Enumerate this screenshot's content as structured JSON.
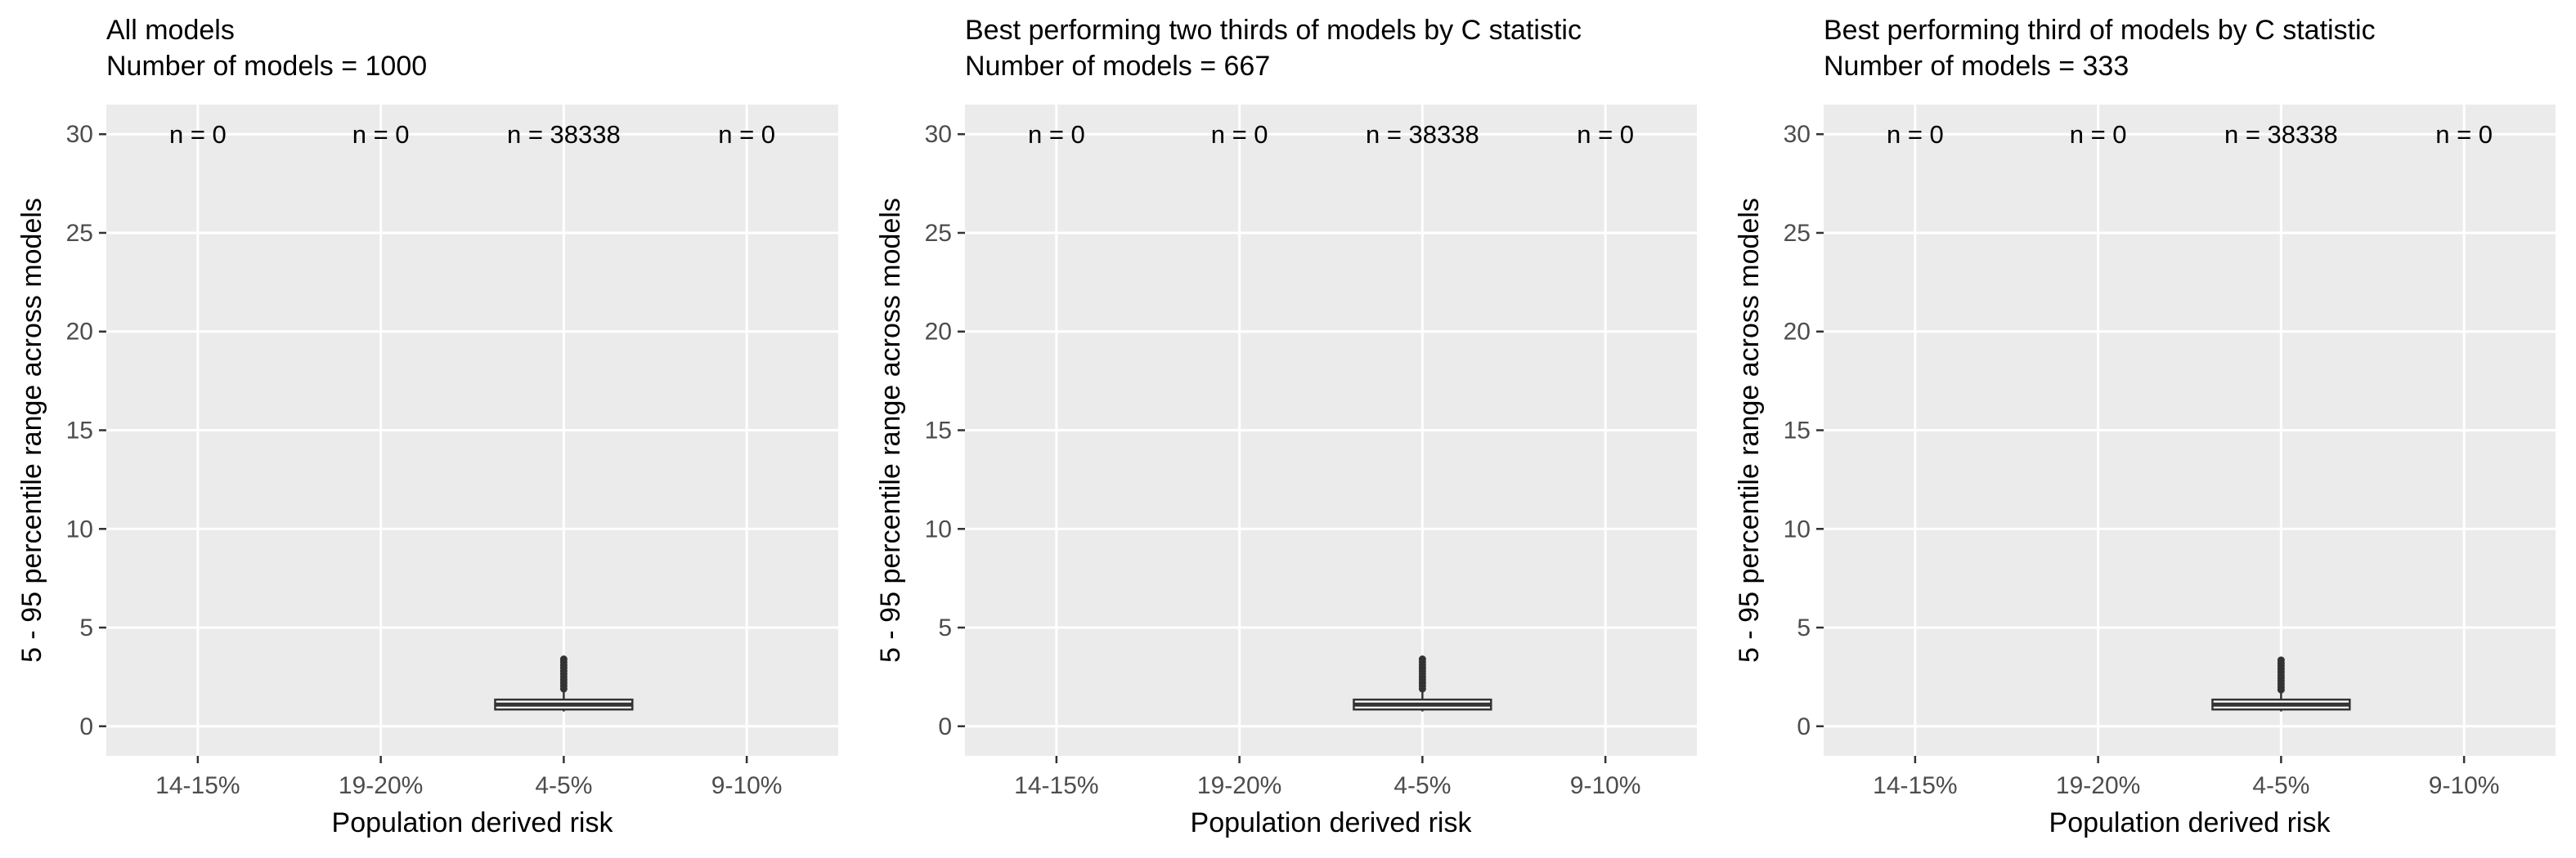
{
  "colors": {
    "panel_background": "#ebebeb",
    "grid_major": "#ffffff",
    "box_stroke": "#333333",
    "tick_text": "#4d4d4d"
  },
  "chart_data": [
    {
      "type": "box",
      "title": "All models",
      "subtitle": "Number of models = 1000",
      "xlabel": "Population derived risk",
      "ylabel": "5 - 95 percentile range across models",
      "categories": [
        "14-15%",
        "19-20%",
        "4-5%",
        "9-10%"
      ],
      "y_ticks": [
        0,
        5,
        10,
        15,
        20,
        25,
        30
      ],
      "ylim": [
        -1.5,
        31.5
      ],
      "grid": true,
      "counts": [
        "n =  0",
        "n =  0",
        "n =  38338",
        "n =  0"
      ],
      "boxes": [
        null,
        null,
        {
          "whisker_low": 0.75,
          "q1": 0.85,
          "median": 1.1,
          "q3": 1.35,
          "whisker_high": 1.75,
          "outliers": [
            1.9,
            2.05,
            2.2,
            2.35,
            2.5,
            2.65,
            2.8,
            2.95,
            3.1,
            3.25,
            3.4
          ]
        },
        null
      ]
    },
    {
      "type": "box",
      "title": "Best performing two thirds of models by C statistic",
      "subtitle": "Number of models = 667",
      "xlabel": "Population derived risk",
      "ylabel": "5 - 95 percentile range across models",
      "categories": [
        "14-15%",
        "19-20%",
        "4-5%",
        "9-10%"
      ],
      "y_ticks": [
        0,
        5,
        10,
        15,
        20,
        25,
        30
      ],
      "ylim": [
        -1.5,
        31.5
      ],
      "grid": true,
      "counts": [
        "n =  0",
        "n =  0",
        "n =  38338",
        "n =  0"
      ],
      "boxes": [
        null,
        null,
        {
          "whisker_low": 0.75,
          "q1": 0.85,
          "median": 1.1,
          "q3": 1.35,
          "whisker_high": 1.75,
          "outliers": [
            1.9,
            2.05,
            2.2,
            2.35,
            2.5,
            2.65,
            2.8,
            2.95,
            3.1,
            3.25,
            3.4
          ]
        },
        null
      ]
    },
    {
      "type": "box",
      "title": "Best performing third of models by C statistic",
      "subtitle": "Number of models = 333",
      "xlabel": "Population derived risk",
      "ylabel": "5 - 95 percentile range across models",
      "categories": [
        "14-15%",
        "19-20%",
        "4-5%",
        "9-10%"
      ],
      "y_ticks": [
        0,
        5,
        10,
        15,
        20,
        25,
        30
      ],
      "ylim": [
        -1.5,
        31.5
      ],
      "grid": true,
      "counts": [
        "n =  0",
        "n =  0",
        "n =  38338",
        "n =  0"
      ],
      "boxes": [
        null,
        null,
        {
          "whisker_low": 0.75,
          "q1": 0.85,
          "median": 1.1,
          "q3": 1.35,
          "whisker_high": 1.7,
          "outliers": [
            1.85,
            2.0,
            2.15,
            2.3,
            2.45,
            2.6,
            2.75,
            2.9,
            3.05,
            3.2,
            3.35
          ]
        },
        null
      ]
    }
  ]
}
